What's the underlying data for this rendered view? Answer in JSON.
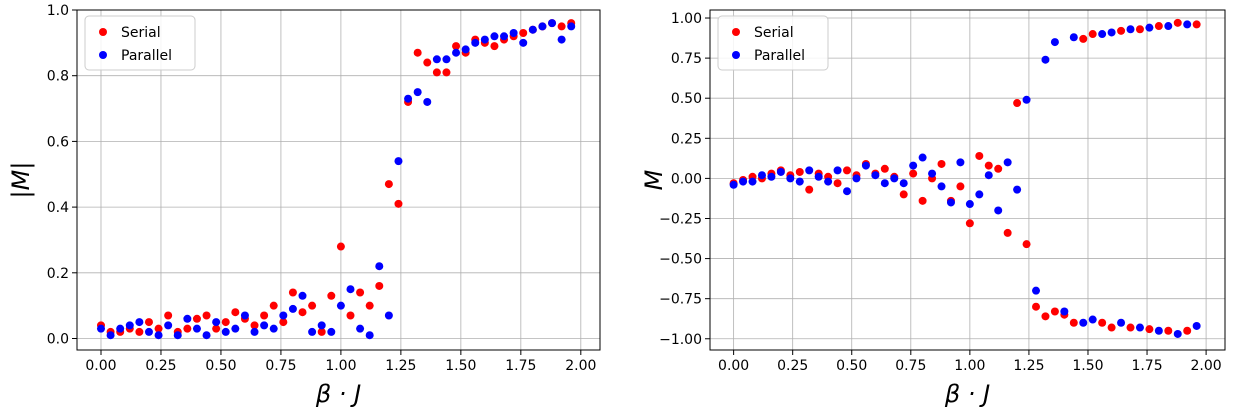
{
  "chart_data": [
    {
      "type": "scatter",
      "xlabel": "β · J",
      "ylabel": "|M|",
      "x": [
        0,
        0.04,
        0.08,
        0.12,
        0.16,
        0.2,
        0.24,
        0.28,
        0.32,
        0.36,
        0.4,
        0.44,
        0.48,
        0.52,
        0.56,
        0.6,
        0.64,
        0.68,
        0.72,
        0.76,
        0.8,
        0.84,
        0.88,
        0.92,
        0.96,
        1.0,
        1.04,
        1.08,
        1.12,
        1.16,
        1.2,
        1.24,
        1.28,
        1.32,
        1.36,
        1.4,
        1.44,
        1.48,
        1.52,
        1.56,
        1.6,
        1.64,
        1.68,
        1.72,
        1.76,
        1.8,
        1.84,
        1.88,
        1.92,
        1.96
      ],
      "series": [
        {
          "name": "Serial",
          "color": "#ff0000",
          "values": [
            0.04,
            0.02,
            0.02,
            0.03,
            0.02,
            0.05,
            0.03,
            0.07,
            0.02,
            0.03,
            0.06,
            0.07,
            0.03,
            0.05,
            0.08,
            0.06,
            0.04,
            0.07,
            0.1,
            0.05,
            0.14,
            0.08,
            0.1,
            0.02,
            0.13,
            0.28,
            0.07,
            0.14,
            0.1,
            0.16,
            0.47,
            0.41,
            0.72,
            0.87,
            0.84,
            0.81,
            0.81,
            0.89,
            0.87,
            0.91,
            0.9,
            0.89,
            0.91,
            0.92,
            0.93,
            0.94,
            0.95,
            0.96,
            0.95,
            0.96
          ]
        },
        {
          "name": "Parallel",
          "color": "#0000ff",
          "values": [
            0.03,
            0.01,
            0.03,
            0.04,
            0.05,
            0.02,
            0.01,
            0.04,
            0.01,
            0.06,
            0.03,
            0.01,
            0.05,
            0.02,
            0.03,
            0.07,
            0.02,
            0.04,
            0.03,
            0.07,
            0.09,
            0.13,
            0.02,
            0.04,
            0.02,
            0.1,
            0.15,
            0.03,
            0.01,
            0.22,
            0.07,
            0.54,
            0.73,
            0.75,
            0.72,
            0.85,
            0.85,
            0.87,
            0.88,
            0.9,
            0.91,
            0.92,
            0.92,
            0.93,
            0.9,
            0.94,
            0.95,
            0.96,
            0.91,
            0.95
          ]
        }
      ],
      "xlim": [
        -0.1,
        2.08
      ],
      "ylim": [
        -0.035,
        1.0
      ],
      "xticks": [
        {
          "value": 0,
          "label": "0.00"
        },
        {
          "value": 0.25,
          "label": "0.25"
        },
        {
          "value": 0.5,
          "label": "0.50"
        },
        {
          "value": 0.75,
          "label": "0.75"
        },
        {
          "value": 1,
          "label": "1.00"
        },
        {
          "value": 1.25,
          "label": "1.25"
        },
        {
          "value": 1.5,
          "label": "1.50"
        },
        {
          "value": 1.75,
          "label": "1.75"
        },
        {
          "value": 2,
          "label": "2.00"
        }
      ],
      "yticks": [
        {
          "value": 0,
          "label": "0.0"
        },
        0.2,
        0.4,
        0.6,
        0.8,
        {
          "value": 1,
          "label": "1.0"
        }
      ],
      "grid": true,
      "legend": "upper left"
    },
    {
      "type": "scatter",
      "xlabel": "β · J",
      "ylabel": "M",
      "x": [
        0,
        0.04,
        0.08,
        0.12,
        0.16,
        0.2,
        0.24,
        0.28,
        0.32,
        0.36,
        0.4,
        0.44,
        0.48,
        0.52,
        0.56,
        0.6,
        0.64,
        0.68,
        0.72,
        0.76,
        0.8,
        0.84,
        0.88,
        0.92,
        0.96,
        1.0,
        1.04,
        1.08,
        1.12,
        1.16,
        1.2,
        1.24,
        1.28,
        1.32,
        1.36,
        1.4,
        1.44,
        1.48,
        1.52,
        1.56,
        1.6,
        1.64,
        1.68,
        1.72,
        1.76,
        1.8,
        1.84,
        1.88,
        1.92,
        1.96
      ],
      "series": [
        {
          "name": "Serial",
          "color": "#ff0000",
          "values": [
            -0.03,
            -0.01,
            0.01,
            0.0,
            0.03,
            0.05,
            0.02,
            0.04,
            -0.07,
            0.03,
            0.01,
            -0.03,
            0.05,
            0.02,
            0.09,
            0.03,
            0.06,
            0.01,
            -0.1,
            0.03,
            -0.14,
            0.0,
            0.09,
            -0.14,
            -0.05,
            -0.28,
            0.14,
            0.08,
            0.06,
            -0.34,
            0.47,
            -0.41,
            -0.8,
            -0.86,
            -0.83,
            -0.85,
            -0.9,
            0.87,
            0.9,
            -0.9,
            -0.93,
            0.92,
            -0.93,
            0.93,
            -0.94,
            0.95,
            -0.95,
            0.97,
            -0.95,
            0.96
          ]
        },
        {
          "name": "Parallel",
          "color": "#0000ff",
          "values": [
            -0.04,
            -0.02,
            -0.02,
            0.02,
            0.01,
            0.04,
            0.0,
            -0.02,
            0.05,
            0.01,
            -0.02,
            0.05,
            -0.08,
            0.0,
            0.08,
            0.02,
            -0.03,
            0.0,
            -0.03,
            0.08,
            0.13,
            0.03,
            -0.05,
            -0.15,
            0.1,
            -0.16,
            -0.1,
            0.02,
            -0.2,
            0.1,
            -0.07,
            0.49,
            -0.7,
            0.74,
            0.85,
            -0.83,
            0.88,
            -0.9,
            -0.88,
            0.9,
            0.91,
            -0.9,
            0.93,
            -0.93,
            0.94,
            -0.95,
            0.95,
            -0.97,
            0.96,
            -0.92
          ]
        }
      ],
      "xlim": [
        -0.1,
        2.08
      ],
      "ylim": [
        -1.07,
        1.05
      ],
      "xticks": [
        {
          "value": 0,
          "label": "0.00"
        },
        {
          "value": 0.25,
          "label": "0.25"
        },
        {
          "value": 0.5,
          "label": "0.50"
        },
        {
          "value": 0.75,
          "label": "0.75"
        },
        {
          "value": 1,
          "label": "1.00"
        },
        {
          "value": 1.25,
          "label": "1.25"
        },
        {
          "value": 1.5,
          "label": "1.50"
        },
        {
          "value": 1.75,
          "label": "1.75"
        },
        {
          "value": 2,
          "label": "2.00"
        }
      ],
      "yticks": [
        {
          "value": -1,
          "label": "−1.00"
        },
        {
          "value": -0.75,
          "label": "−0.75"
        },
        {
          "value": -0.5,
          "label": "−0.50"
        },
        {
          "value": -0.25,
          "label": "−0.25"
        },
        {
          "value": 0,
          "label": "0.00"
        },
        {
          "value": 0.25,
          "label": "0.25"
        },
        {
          "value": 0.5,
          "label": "0.50"
        },
        {
          "value": 0.75,
          "label": "0.75"
        },
        {
          "value": 1,
          "label": "1.00"
        }
      ],
      "grid": true,
      "legend": "upper left"
    }
  ]
}
